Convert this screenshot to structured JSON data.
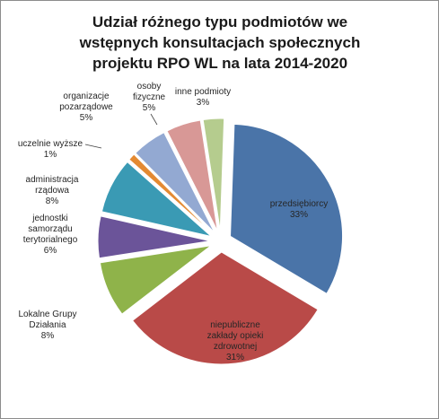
{
  "title_lines": [
    "Udział różnego typu podmiotów we",
    "wstępnych konsultacjach społecznych",
    "projektu RPO WL na lata 2014-2020"
  ],
  "chart_data": {
    "type": "pie",
    "exploded": true,
    "title": "Udział różnego typu podmiotów we wstępnych konsultacjach społecznych projektu RPO WL na lata 2014-2020",
    "slices": [
      {
        "label_lines": [
          "przedsiębiorcy"
        ],
        "percent_label": "33%",
        "value": 33,
        "color": "#4a74a8"
      },
      {
        "label_lines": [
          "niepubliczne",
          "zakłady opieki",
          "zdrowotnej"
        ],
        "percent_label": "31%",
        "value": 31,
        "color": "#b94a48"
      },
      {
        "label_lines": [
          "Lokalne Grupy",
          "Działania"
        ],
        "percent_label": "8%",
        "value": 8,
        "color": "#8fb34a"
      },
      {
        "label_lines": [
          "jednostki",
          "samorządu",
          "terytorialnego"
        ],
        "percent_label": "6%",
        "value": 6,
        "color": "#6b5499"
      },
      {
        "label_lines": [
          "administracja",
          "rządowa"
        ],
        "percent_label": "8%",
        "value": 8,
        "color": "#3a9ab4"
      },
      {
        "label_lines": [
          "uczelnie wyższe"
        ],
        "percent_label": "1%",
        "value": 1,
        "color": "#e48a32"
      },
      {
        "label_lines": [
          "organizacje",
          "pozarządowe"
        ],
        "percent_label": "5%",
        "value": 5,
        "color": "#93a9d2"
      },
      {
        "label_lines": [
          "osoby",
          "fizyczne"
        ],
        "percent_label": "5%",
        "value": 5,
        "color": "#d89896"
      },
      {
        "label_lines": [
          "inne podmioty"
        ],
        "percent_label": "3%",
        "value": 3,
        "color": "#b5cc8e"
      }
    ]
  }
}
